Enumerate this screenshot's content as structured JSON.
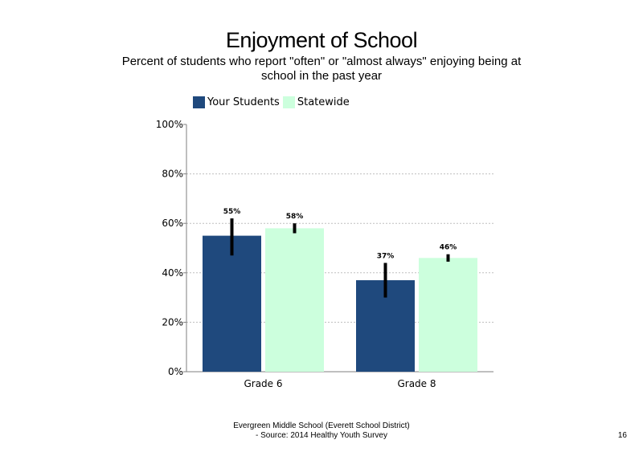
{
  "slide": {
    "title": "Enjoyment of School",
    "subtitle": "Percent of students who report \"often\" or \"almost always\" enjoying being at school in the past year",
    "footer_line1": "Evergreen Middle School (Everett School District)",
    "footer_line2": "- Source: 2014 Healthy Youth Survey",
    "page_number": "16"
  },
  "chart_data": {
    "type": "bar",
    "categories": [
      "Grade 6",
      "Grade 8"
    ],
    "series": [
      {
        "name": "Your Students",
        "color": "#1f497d",
        "values": [
          55,
          37
        ],
        "labels": [
          "55%",
          "37%"
        ],
        "error_low": [
          47,
          30
        ],
        "error_high": [
          62,
          44
        ]
      },
      {
        "name": "Statewide",
        "color": "#ccffdd",
        "values": [
          58,
          46
        ],
        "labels": [
          "58%",
          "46%"
        ],
        "error_low": [
          56,
          44.5
        ],
        "error_high": [
          60,
          47.5
        ]
      }
    ],
    "ylim": [
      0,
      100
    ],
    "yticks": [
      0,
      20,
      40,
      60,
      80,
      100
    ],
    "ytick_labels": [
      "0%",
      "20%",
      "40%",
      "60%",
      "80%",
      "100%"
    ],
    "grid": "dotted horizontal",
    "legend_position": "top-left"
  }
}
